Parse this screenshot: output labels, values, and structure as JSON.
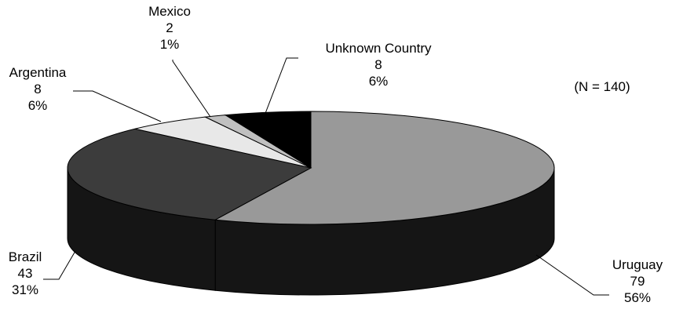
{
  "chart_data": {
    "type": "pie",
    "subtype": "3d-pie",
    "note": "(N = 140)",
    "total": 140,
    "slices": [
      {
        "label": "Uruguay",
        "value": 79,
        "percent": "56%",
        "color": "#999999"
      },
      {
        "label": "Brazil",
        "value": 43,
        "percent": "31%",
        "color": "#3c3c3c"
      },
      {
        "label": "Argentina",
        "value": 8,
        "percent": "6%",
        "color": "#e8e8e8"
      },
      {
        "label": "Mexico",
        "value": 2,
        "percent": "1%",
        "color": "#c0c0c0"
      },
      {
        "label": "Unknown Country",
        "value": 8,
        "percent": "6%",
        "color": "#000000"
      }
    ],
    "side_color": "#151515",
    "outline_color": "#000000"
  }
}
